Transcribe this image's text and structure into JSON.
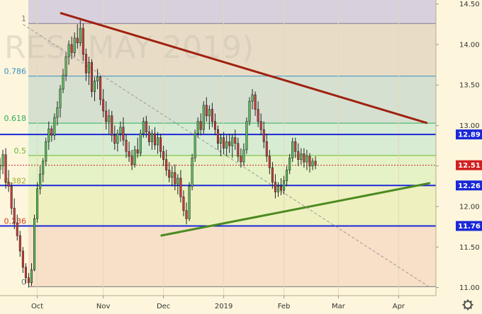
{
  "chart_data": {
    "type": "candlestick",
    "watermark": "RES (MAY 2019)",
    "y_axis": {
      "ylim": [
        10.9,
        14.55
      ],
      "ticks": [
        "14.50",
        "14.00",
        "13.50",
        "13.00",
        "12.50",
        "12.00",
        "11.50",
        "11.00"
      ],
      "tick_values": [
        14.5,
        14.0,
        13.5,
        13.0,
        12.5,
        12.0,
        11.5,
        11.0
      ]
    },
    "x_axis": {
      "xlim": [
        0,
        152
      ],
      "ticks": [
        "Oct",
        "Nov",
        "Dec",
        "2019",
        "Feb",
        "Mar",
        "Apr"
      ],
      "tick_values": [
        13,
        36,
        57,
        78,
        99,
        118,
        139
      ]
    },
    "fib_levels": [
      {
        "label": "1",
        "value": 14.26,
        "color": "#8a7a8a"
      },
      {
        "label": "0.786",
        "value": 13.61,
        "color": "#3a8fc0"
      },
      {
        "label": "0.618",
        "value": 13.03,
        "color": "#2fae5a"
      },
      {
        "label": "0.5",
        "value": 12.63,
        "color": "#6ab82a"
      },
      {
        "label": "0.382",
        "value": 12.26,
        "color": "#a0b020"
      },
      {
        "label": "0.236",
        "value": 11.76,
        "color": "#d04020"
      },
      {
        "label": "0",
        "value": 11.01,
        "color": "#777777"
      }
    ],
    "fib_zones": [
      "#d8d0dc",
      "#e8dcc6",
      "#d6e0d0",
      "#d8ecd4",
      "#e4f2c6",
      "#eef0c0",
      "#f7dfc8"
    ],
    "horizontal_lines": [
      {
        "label": "12.89",
        "value": 12.89,
        "color": "#1a28d8"
      },
      {
        "label": "12.26",
        "value": 12.26,
        "color": "#1a28d8"
      },
      {
        "label": "11.76",
        "value": 11.76,
        "color": "#1a28d8"
      }
    ],
    "last_price": {
      "label": "12.51",
      "value": 12.51,
      "color": "#d02020"
    },
    "trend_lines": [
      {
        "name": "resistance",
        "color": "#a02010",
        "x1": 21,
        "y1": 14.39,
        "x2": 149,
        "y2": 13.03
      },
      {
        "name": "support",
        "color": "#4a8a20",
        "x1": 56,
        "y1": 11.64,
        "x2": 150,
        "y2": 12.29
      },
      {
        "name": "diagonal",
        "color": "#999999",
        "x1": 8,
        "y1": 14.25,
        "x2": 150,
        "y2": 11.0
      }
    ],
    "candles": [
      [
        0,
        12.46,
        12.6,
        12.34,
        12.5
      ],
      [
        1,
        12.5,
        12.7,
        12.4,
        12.64
      ],
      [
        2,
        12.64,
        12.72,
        12.22,
        12.3
      ],
      [
        3,
        12.3,
        12.45,
        12.18,
        12.25
      ],
      [
        4,
        12.25,
        12.3,
        11.9,
        11.98
      ],
      [
        5,
        11.98,
        12.1,
        11.72,
        11.8
      ],
      [
        6,
        11.8,
        11.9,
        11.58,
        11.64
      ],
      [
        7,
        11.64,
        11.7,
        11.38,
        11.45
      ],
      [
        8,
        11.45,
        11.5,
        11.18,
        11.25
      ],
      [
        9,
        11.25,
        11.3,
        11.05,
        11.12
      ],
      [
        10,
        11.12,
        11.18,
        11.0,
        11.06
      ],
      [
        11,
        11.06,
        11.3,
        11.02,
        11.22
      ],
      [
        12,
        11.22,
        11.9,
        11.2,
        11.85
      ],
      [
        13,
        11.85,
        12.3,
        11.8,
        12.22
      ],
      [
        14,
        12.22,
        12.5,
        12.15,
        12.4
      ],
      [
        15,
        12.4,
        12.6,
        12.3,
        12.56
      ],
      [
        16,
        12.56,
        12.85,
        12.5,
        12.8
      ],
      [
        17,
        12.8,
        13.05,
        12.7,
        12.96
      ],
      [
        18,
        12.96,
        13.0,
        12.8,
        12.88
      ],
      [
        19,
        12.88,
        13.15,
        12.82,
        13.1
      ],
      [
        20,
        13.1,
        13.3,
        13.0,
        13.22
      ],
      [
        21,
        13.22,
        13.5,
        13.1,
        13.45
      ],
      [
        22,
        13.45,
        13.7,
        13.4,
        13.62
      ],
      [
        23,
        13.62,
        13.9,
        13.55,
        13.85
      ],
      [
        24,
        13.85,
        14.05,
        13.75,
        14.0
      ],
      [
        25,
        14.0,
        14.1,
        13.82,
        13.9
      ],
      [
        26,
        13.9,
        14.15,
        13.85,
        14.08
      ],
      [
        27,
        14.08,
        14.25,
        13.95,
        14.02
      ],
      [
        28,
        14.02,
        14.3,
        13.98,
        14.2
      ],
      [
        29,
        14.2,
        14.26,
        13.8,
        13.88
      ],
      [
        30,
        13.88,
        13.95,
        13.55,
        13.65
      ],
      [
        31,
        13.65,
        13.85,
        13.5,
        13.78
      ],
      [
        32,
        13.78,
        13.82,
        13.35,
        13.42
      ],
      [
        33,
        13.42,
        13.6,
        13.3,
        13.55
      ],
      [
        34,
        13.55,
        13.7,
        13.45,
        13.6
      ],
      [
        35,
        13.6,
        13.62,
        13.25,
        13.32
      ],
      [
        36,
        13.32,
        13.45,
        13.1,
        13.18
      ],
      [
        37,
        13.18,
        13.3,
        12.95,
        13.05
      ],
      [
        38,
        13.05,
        13.2,
        12.9,
        13.12
      ],
      [
        39,
        13.12,
        13.18,
        12.8,
        12.88
      ],
      [
        40,
        12.88,
        13.0,
        12.7,
        12.78
      ],
      [
        41,
        12.78,
        12.95,
        12.68,
        12.9
      ],
      [
        42,
        12.9,
        13.05,
        12.8,
        12.98
      ],
      [
        43,
        12.98,
        13.1,
        12.75,
        12.82
      ],
      [
        44,
        12.82,
        12.9,
        12.6,
        12.68
      ],
      [
        45,
        12.68,
        12.8,
        12.55,
        12.62
      ],
      [
        46,
        12.62,
        12.7,
        12.45,
        12.52
      ],
      [
        47,
        12.52,
        12.75,
        12.48,
        12.7
      ],
      [
        48,
        12.7,
        12.85,
        12.6,
        12.66
      ],
      [
        49,
        12.66,
        12.95,
        12.62,
        12.9
      ],
      [
        50,
        12.9,
        13.1,
        12.85,
        13.05
      ],
      [
        51,
        13.05,
        13.12,
        12.85,
        12.92
      ],
      [
        52,
        12.92,
        13.0,
        12.75,
        12.8
      ],
      [
        53,
        12.8,
        12.95,
        12.7,
        12.9
      ],
      [
        54,
        12.9,
        12.98,
        12.7,
        12.76
      ],
      [
        55,
        12.76,
        12.92,
        12.65,
        12.85
      ],
      [
        56,
        12.85,
        12.9,
        12.6,
        12.68
      ],
      [
        57,
        12.68,
        12.75,
        12.5,
        12.58
      ],
      [
        58,
        12.58,
        12.7,
        12.38,
        12.45
      ],
      [
        59,
        12.45,
        12.55,
        12.3,
        12.36
      ],
      [
        60,
        12.36,
        12.5,
        12.25,
        12.42
      ],
      [
        61,
        12.42,
        12.52,
        12.2,
        12.28
      ],
      [
        62,
        12.28,
        12.4,
        12.15,
        12.35
      ],
      [
        63,
        12.35,
        12.45,
        12.05,
        12.12
      ],
      [
        64,
        12.12,
        12.2,
        11.88,
        11.95
      ],
      [
        65,
        11.95,
        12.05,
        11.78,
        11.85
      ],
      [
        66,
        11.85,
        12.3,
        11.82,
        12.25
      ],
      [
        67,
        12.25,
        12.65,
        12.2,
        12.6
      ],
      [
        68,
        12.6,
        12.95,
        12.55,
        12.9
      ],
      [
        69,
        12.9,
        13.1,
        12.85,
        13.05
      ],
      [
        70,
        13.05,
        13.15,
        12.88,
        12.95
      ],
      [
        71,
        12.95,
        13.3,
        12.9,
        13.25
      ],
      [
        72,
        13.25,
        13.35,
        13.05,
        13.12
      ],
      [
        73,
        13.12,
        13.25,
        12.95,
        13.2
      ],
      [
        74,
        13.2,
        13.28,
        12.98,
        13.05
      ],
      [
        75,
        13.05,
        13.15,
        12.88,
        12.95
      ],
      [
        76,
        12.95,
        13.0,
        12.7,
        12.78
      ],
      [
        77,
        12.78,
        12.9,
        12.62,
        12.85
      ],
      [
        78,
        12.85,
        12.92,
        12.65,
        12.72
      ],
      [
        79,
        12.72,
        12.88,
        12.62,
        12.8
      ],
      [
        80,
        12.8,
        12.9,
        12.66,
        12.75
      ],
      [
        81,
        12.75,
        12.9,
        12.6,
        12.85
      ],
      [
        82,
        12.85,
        12.95,
        12.7,
        12.78
      ],
      [
        83,
        12.78,
        12.85,
        12.55,
        12.62
      ],
      [
        84,
        12.62,
        12.72,
        12.48,
        12.55
      ],
      [
        85,
        12.55,
        12.78,
        12.5,
        12.7
      ],
      [
        86,
        12.7,
        13.1,
        12.65,
        13.05
      ],
      [
        87,
        13.05,
        13.35,
        13.0,
        13.3
      ],
      [
        88,
        13.3,
        13.45,
        13.2,
        13.38
      ],
      [
        89,
        13.38,
        13.42,
        13.12,
        13.2
      ],
      [
        90,
        13.2,
        13.3,
        12.98,
        13.05
      ],
      [
        91,
        13.05,
        13.15,
        12.88,
        12.95
      ],
      [
        92,
        12.95,
        13.05,
        12.72,
        12.8
      ],
      [
        93,
        12.8,
        12.9,
        12.55,
        12.62
      ],
      [
        94,
        12.62,
        12.7,
        12.4,
        12.48
      ],
      [
        95,
        12.48,
        12.55,
        12.22,
        12.3
      ],
      [
        96,
        12.3,
        12.4,
        12.1,
        12.18
      ],
      [
        97,
        12.18,
        12.3,
        12.12,
        12.25
      ],
      [
        98,
        12.25,
        12.35,
        12.14,
        12.2
      ],
      [
        99,
        12.2,
        12.38,
        12.15,
        12.32
      ],
      [
        100,
        12.32,
        12.5,
        12.25,
        12.45
      ],
      [
        101,
        12.45,
        12.65,
        12.4,
        12.6
      ],
      [
        102,
        12.6,
        12.85,
        12.55,
        12.8
      ],
      [
        103,
        12.8,
        12.85,
        12.6,
        12.68
      ],
      [
        104,
        12.68,
        12.78,
        12.5,
        12.58
      ],
      [
        105,
        12.58,
        12.72,
        12.52,
        12.65
      ],
      [
        106,
        12.65,
        12.72,
        12.48,
        12.55
      ],
      [
        107,
        12.55,
        12.7,
        12.45,
        12.62
      ],
      [
        108,
        12.62,
        12.66,
        12.42,
        12.5
      ],
      [
        109,
        12.5,
        12.6,
        12.45,
        12.56
      ],
      [
        110,
        12.56,
        12.62,
        12.46,
        12.51
      ]
    ]
  }
}
